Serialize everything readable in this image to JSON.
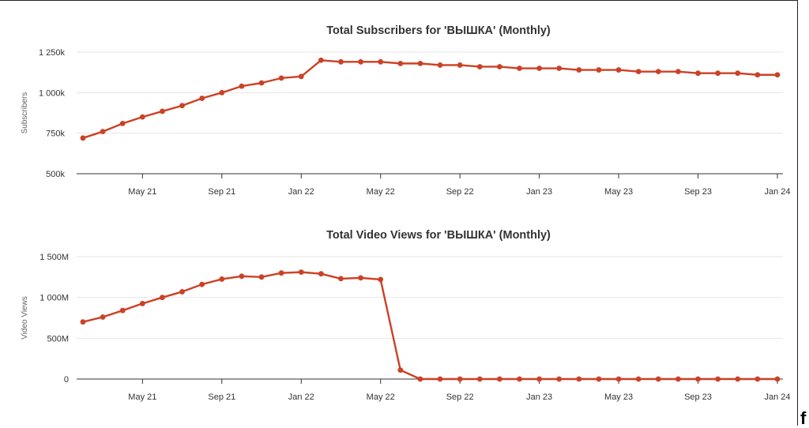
{
  "colors": {
    "series": "#cc4125"
  },
  "corner_glyph": "f",
  "chart_data": [
    {
      "type": "line",
      "title": "Total Subscribers for 'ВЫШКА' (Monthly)",
      "xlabel": "",
      "ylabel": "Subscribers",
      "ylim": [
        500000,
        1250000
      ],
      "y_ticks": [
        500000,
        750000,
        1000000,
        1250000
      ],
      "y_tick_labels": [
        "500k",
        "750k",
        "1 000k",
        "1 250k"
      ],
      "x_ticks": [
        "May 21",
        "Sep 21",
        "Jan 22",
        "May 22",
        "Sep 22",
        "Jan 23",
        "May 23",
        "Sep 23",
        "Jan 24"
      ],
      "grid": true,
      "x": [
        "2021-02",
        "2021-03",
        "2021-04",
        "2021-05",
        "2021-06",
        "2021-07",
        "2021-08",
        "2021-09",
        "2021-10",
        "2021-11",
        "2021-12",
        "2022-01",
        "2022-02",
        "2022-03",
        "2022-04",
        "2022-05",
        "2022-06",
        "2022-07",
        "2022-08",
        "2022-09",
        "2022-10",
        "2022-11",
        "2022-12",
        "2023-01",
        "2023-02",
        "2023-03",
        "2023-04",
        "2023-05",
        "2023-06",
        "2023-07",
        "2023-08",
        "2023-09",
        "2023-10",
        "2023-11",
        "2023-12",
        "2024-01"
      ],
      "series": [
        {
          "values": [
            720000,
            760000,
            810000,
            850000,
            885000,
            920000,
            965000,
            1000000,
            1040000,
            1060000,
            1090000,
            1100000,
            1200000,
            1190000,
            1190000,
            1190000,
            1180000,
            1180000,
            1170000,
            1170000,
            1160000,
            1160000,
            1150000,
            1150000,
            1150000,
            1140000,
            1140000,
            1140000,
            1130000,
            1130000,
            1130000,
            1120000,
            1120000,
            1120000,
            1110000,
            1110000
          ]
        }
      ]
    },
    {
      "type": "line",
      "title": "Total Video Views for 'ВЫШКА' (Monthly)",
      "xlabel": "",
      "ylabel": "Video Views",
      "ylim": [
        0,
        1500000000
      ],
      "y_ticks": [
        0,
        500000000,
        1000000000,
        1500000000
      ],
      "y_tick_labels": [
        "0",
        "500M",
        "1 000M",
        "1 500M"
      ],
      "x_ticks": [
        "May 21",
        "Sep 21",
        "Jan 22",
        "May 22",
        "Sep 22",
        "Jan 23",
        "May 23",
        "Sep 23",
        "Jan 24"
      ],
      "grid": true,
      "x": [
        "2021-02",
        "2021-03",
        "2021-04",
        "2021-05",
        "2021-06",
        "2021-07",
        "2021-08",
        "2021-09",
        "2021-10",
        "2021-11",
        "2021-12",
        "2022-01",
        "2022-02",
        "2022-03",
        "2022-04",
        "2022-05",
        "2022-06",
        "2022-07",
        "2022-08",
        "2022-09",
        "2022-10",
        "2022-11",
        "2022-12",
        "2023-01",
        "2023-02",
        "2023-03",
        "2023-04",
        "2023-05",
        "2023-06",
        "2023-07",
        "2023-08",
        "2023-09",
        "2023-10",
        "2023-11",
        "2023-12",
        "2024-01"
      ],
      "series": [
        {
          "values": [
            700000000,
            760000000,
            840000000,
            925000000,
            1000000000,
            1070000000,
            1160000000,
            1225000000,
            1260000000,
            1250000000,
            1300000000,
            1310000000,
            1290000000,
            1230000000,
            1240000000,
            1220000000,
            110000000,
            0,
            0,
            0,
            0,
            0,
            0,
            0,
            0,
            0,
            0,
            0,
            0,
            0,
            0,
            0,
            0,
            0,
            0,
            0
          ]
        }
      ]
    }
  ]
}
